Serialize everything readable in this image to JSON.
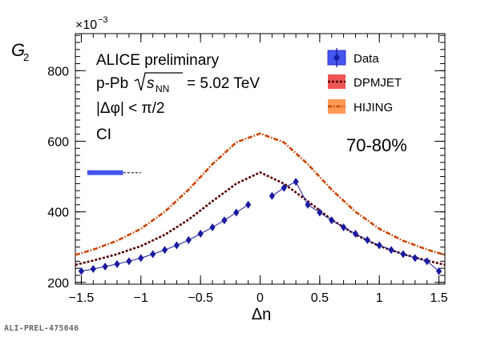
{
  "footer": "ALI-PREL-475046",
  "chart_data": {
    "type": "line",
    "ylabel_main": "G",
    "ylabel_sub": "2",
    "y_exponent_base": "×10",
    "y_exponent_power": "−3",
    "xlabel": "Δη",
    "xlim": [
      -1.55,
      1.55
    ],
    "ylim": [
      195,
      905
    ],
    "x_ticks": [
      -1.5,
      -1,
      -0.5,
      0,
      0.5,
      1,
      1.5
    ],
    "x_tick_labels": [
      "−1.5",
      "−1",
      "−0.5",
      "0",
      "0.5",
      "1",
      "1.5"
    ],
    "y_ticks": [
      200,
      400,
      600,
      800
    ],
    "y_tick_labels": [
      "200",
      "400",
      "600",
      "800"
    ],
    "annotations": {
      "line1": "ALICE preliminary",
      "line2_prefix": "p-Pb",
      "line2_s": "s",
      "line2_sub": "NN",
      "line2_suffix": "= 5.02 TeV",
      "line3": "|Δφ| < π/2",
      "line4": "CI",
      "centrality": "70-80%"
    },
    "legend": [
      {
        "name": "Data",
        "color": "#3333cc"
      },
      {
        "name": "DPMJET",
        "color": "#550000"
      },
      {
        "name": "HIJING",
        "color": "#cc4400"
      }
    ],
    "syst_box": {
      "x_range": [
        -1.45,
        -1.15
      ],
      "y": 511,
      "dash_to": -1.0,
      "color": "#4455ee"
    },
    "series": [
      {
        "name": "Data",
        "color": "#1a1aa0",
        "x": [
          -1.5,
          -1.4,
          -1.3,
          -1.2,
          -1.1,
          -1.0,
          -0.9,
          -0.8,
          -0.7,
          -0.6,
          -0.5,
          -0.4,
          -0.3,
          -0.2,
          -0.1,
          0.1,
          0.2,
          0.3,
          0.4,
          0.5,
          0.6,
          0.7,
          0.8,
          0.9,
          1.0,
          1.1,
          1.2,
          1.3,
          1.4,
          1.5
        ],
        "y": [
          232,
          238,
          245,
          252,
          260,
          269,
          280,
          292,
          305,
          320,
          338,
          356,
          376,
          398,
          420,
          445,
          468,
          485,
          420,
          398,
          376,
          356,
          338,
          320,
          305,
          292,
          280,
          269,
          260,
          232
        ]
      },
      {
        "name": "DPMJET",
        "color": "#550000",
        "x": [
          -1.55,
          -1.4,
          -1.2,
          -1.0,
          -0.8,
          -0.6,
          -0.4,
          -0.2,
          0.0,
          0.2,
          0.4,
          0.6,
          0.8,
          1.0,
          1.2,
          1.4,
          1.55
        ],
        "y": [
          250,
          262,
          280,
          303,
          335,
          378,
          430,
          480,
          512,
          480,
          430,
          378,
          335,
          303,
          280,
          262,
          250
        ]
      },
      {
        "name": "HIJING",
        "color": "#cc4400",
        "x": [
          -1.55,
          -1.4,
          -1.2,
          -1.0,
          -0.8,
          -0.6,
          -0.4,
          -0.2,
          0.0,
          0.2,
          0.4,
          0.6,
          0.8,
          1.0,
          1.2,
          1.4,
          1.55
        ],
        "y": [
          278,
          293,
          318,
          352,
          400,
          463,
          535,
          597,
          622,
          597,
          535,
          463,
          400,
          352,
          318,
          293,
          278
        ]
      }
    ]
  }
}
